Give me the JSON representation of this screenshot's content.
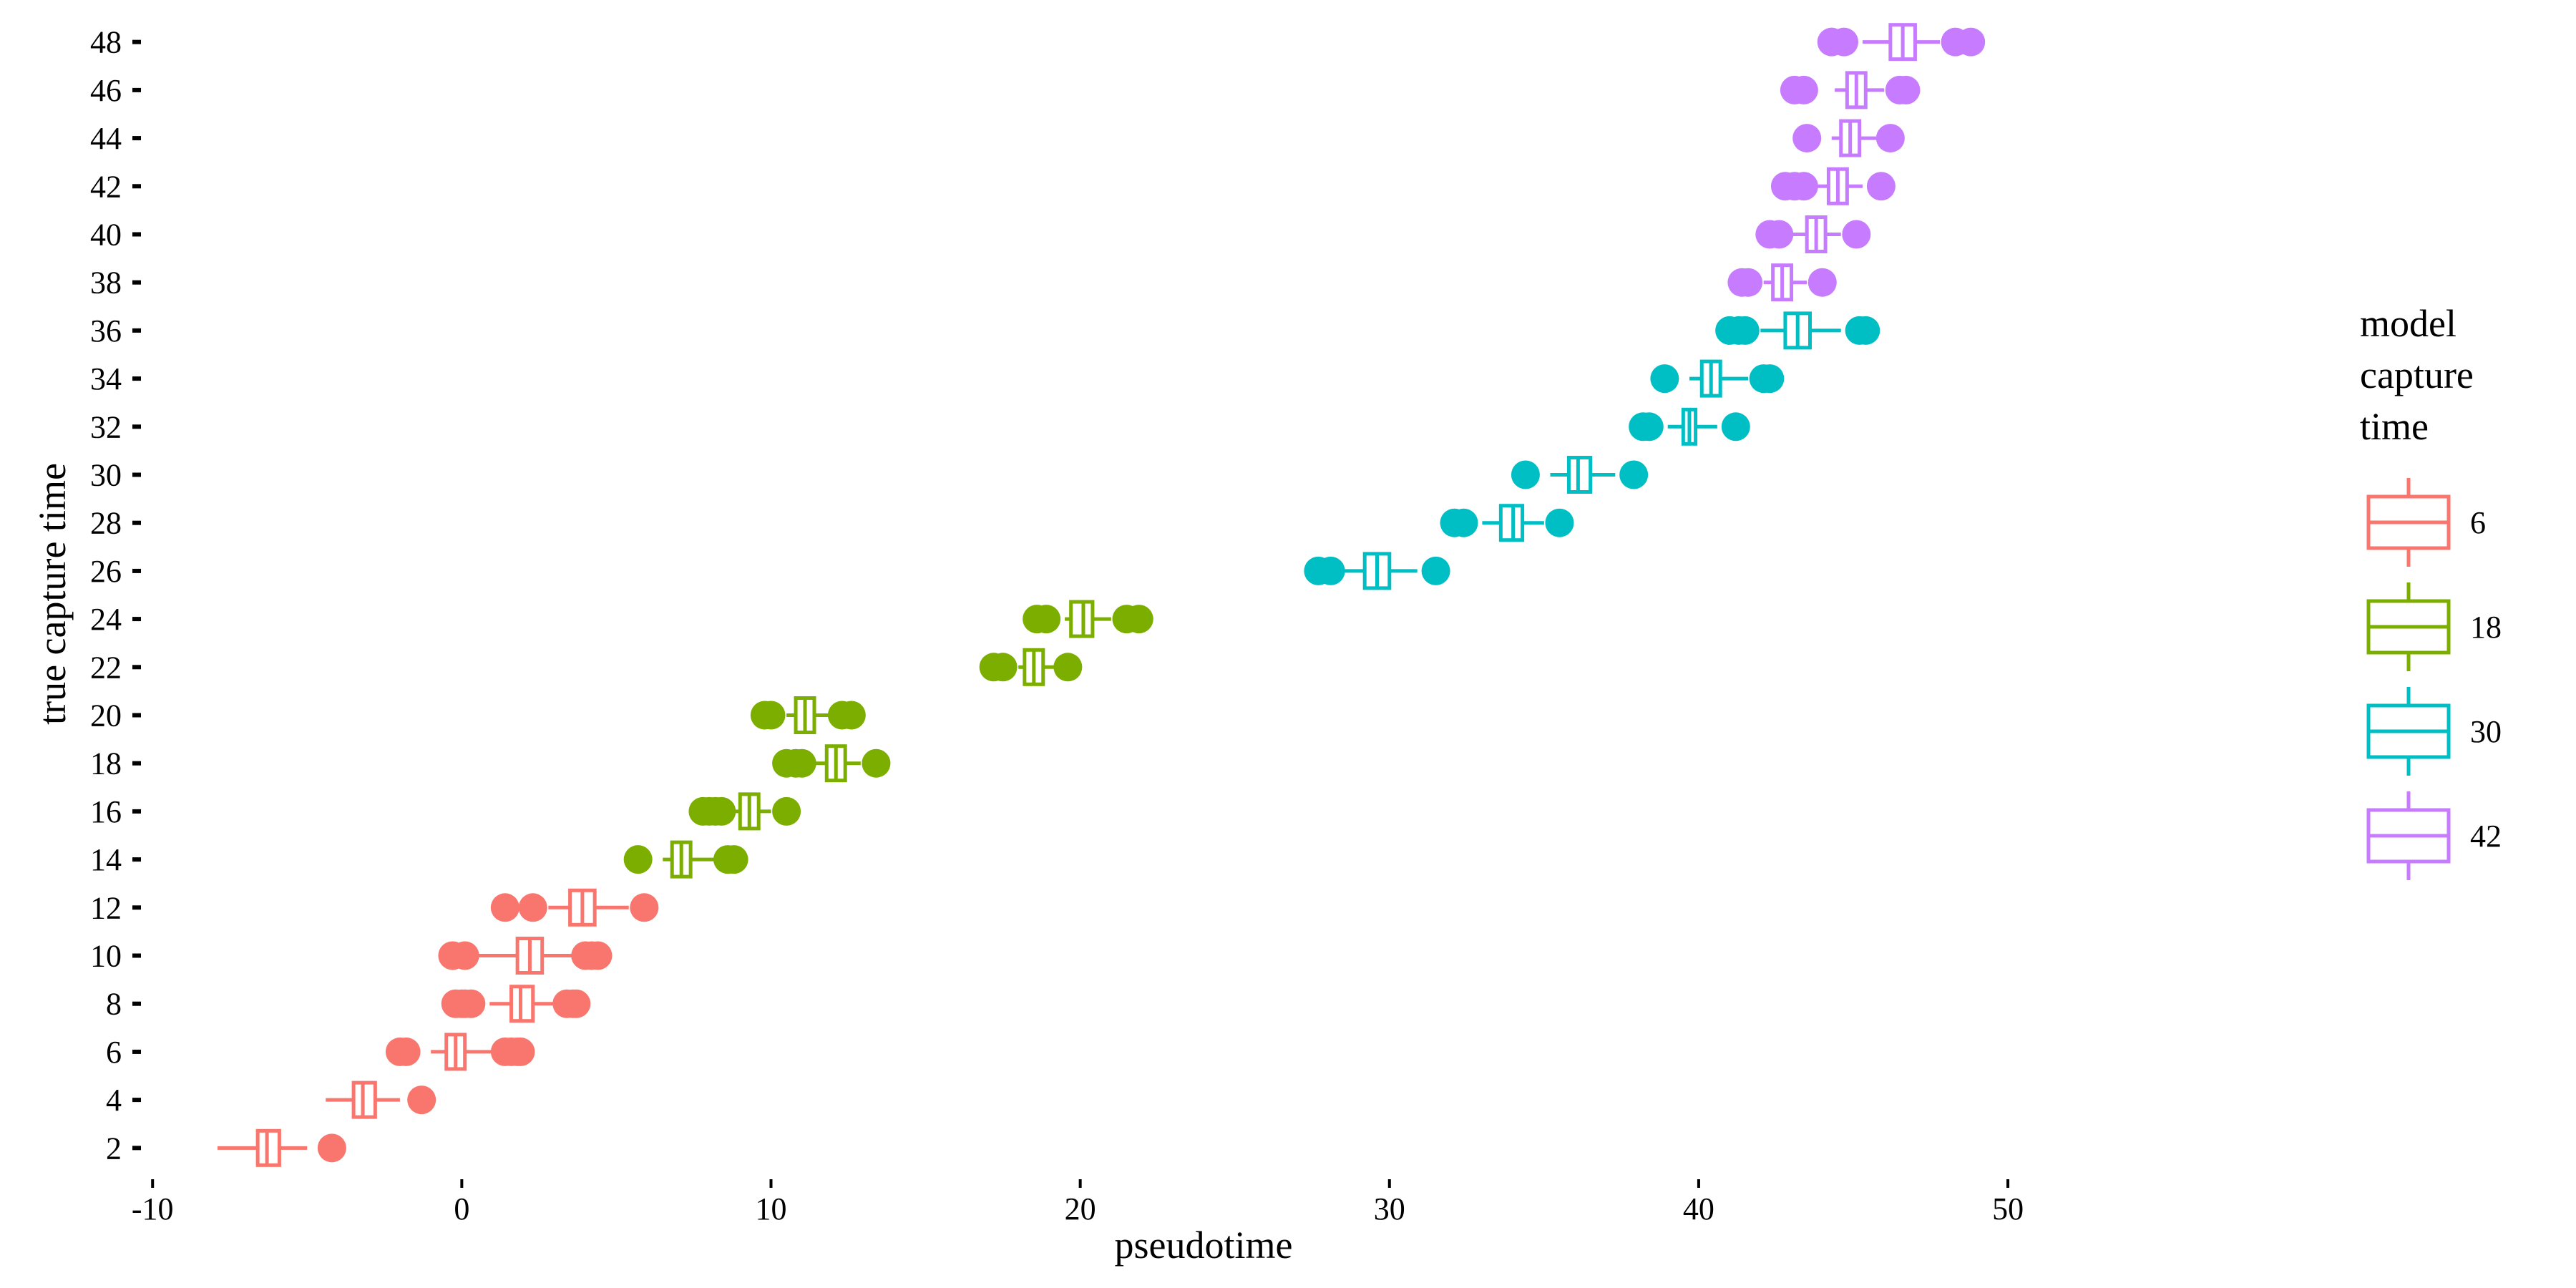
{
  "chart_data": {
    "type": "box",
    "xlabel": "pseudotime",
    "ylabel": "true capture time",
    "xlim": [
      -11,
      59
    ],
    "ylim": [
      0.7,
      49.3
    ],
    "x_ticks": [
      -10,
      0,
      10,
      20,
      30,
      40,
      50
    ],
    "y_ticks": [
      2,
      4,
      6,
      8,
      10,
      12,
      14,
      16,
      18,
      20,
      22,
      24,
      26,
      28,
      30,
      32,
      34,
      36,
      38,
      40,
      42,
      44,
      46,
      48
    ],
    "grid": false,
    "orientation": "horizontal",
    "legend": {
      "title": "model capture time",
      "title_lines": [
        "model",
        "capture",
        "time"
      ],
      "position": "right",
      "entries": [
        "6",
        "18",
        "30",
        "42"
      ]
    },
    "colors": {
      "6": "#F8766D",
      "18": "#7CAE00",
      "30": "#00BFC4",
      "42": "#C77CFF"
    },
    "boxes": [
      {
        "group": "6",
        "y": 2,
        "whisker_low": -7.9,
        "q1": -6.6,
        "median": -6.3,
        "q3": -5.9,
        "whisker_high": -5.0,
        "outliers": [
          -4.2
        ]
      },
      {
        "group": "6",
        "y": 4,
        "whisker_low": -4.4,
        "q1": -3.5,
        "median": -3.2,
        "q3": -2.8,
        "whisker_high": -2.0,
        "outliers": [
          -1.3
        ]
      },
      {
        "group": "6",
        "y": 6,
        "whisker_low": -1.0,
        "q1": -0.5,
        "median": -0.2,
        "q3": 0.1,
        "whisker_high": 1.2,
        "outliers": [
          -2.0,
          -1.8,
          1.4,
          1.6,
          1.8,
          1.9
        ]
      },
      {
        "group": "6",
        "y": 8,
        "whisker_low": 0.9,
        "q1": 1.6,
        "median": 1.9,
        "q3": 2.3,
        "whisker_high": 3.1,
        "outliers": [
          -0.2,
          0.0,
          0.1,
          0.3,
          3.4,
          3.6,
          3.7
        ]
      },
      {
        "group": "6",
        "y": 10,
        "whisker_low": 0.5,
        "q1": 1.8,
        "median": 2.2,
        "q3": 2.6,
        "whisker_high": 3.6,
        "outliers": [
          -0.3,
          0.1,
          4.0,
          4.2,
          4.4
        ]
      },
      {
        "group": "6",
        "y": 12,
        "whisker_low": 2.8,
        "q1": 3.5,
        "median": 3.9,
        "q3": 4.3,
        "whisker_high": 5.4,
        "outliers": [
          1.4,
          2.3,
          5.9
        ]
      },
      {
        "group": "18",
        "y": 14,
        "whisker_low": 6.5,
        "q1": 6.8,
        "median": 7.1,
        "q3": 7.4,
        "whisker_high": 8.2,
        "outliers": [
          5.7,
          8.6,
          8.8
        ]
      },
      {
        "group": "18",
        "y": 16,
        "whisker_low": 8.7,
        "q1": 9.0,
        "median": 9.3,
        "q3": 9.6,
        "whisker_high": 10.0,
        "outliers": [
          7.8,
          8.0,
          8.2,
          8.4,
          10.5
        ]
      },
      {
        "group": "18",
        "y": 18,
        "whisker_low": 11.4,
        "q1": 11.8,
        "median": 12.1,
        "q3": 12.4,
        "whisker_high": 12.9,
        "outliers": [
          10.5,
          10.8,
          11.0,
          13.4
        ]
      },
      {
        "group": "18",
        "y": 20,
        "whisker_low": 10.5,
        "q1": 10.8,
        "median": 11.1,
        "q3": 11.4,
        "whisker_high": 12.0,
        "outliers": [
          9.8,
          10.0,
          12.3,
          12.6
        ]
      },
      {
        "group": "18",
        "y": 22,
        "whisker_low": 18.0,
        "q1": 18.2,
        "median": 18.5,
        "q3": 18.8,
        "whisker_high": 19.3,
        "outliers": [
          17.2,
          17.5,
          19.6
        ]
      },
      {
        "group": "18",
        "y": 24,
        "whisker_low": 19.5,
        "q1": 19.7,
        "median": 20.1,
        "q3": 20.4,
        "whisker_high": 21.0,
        "outliers": [
          18.6,
          18.9,
          21.5,
          21.9
        ]
      },
      {
        "group": "30",
        "y": 26,
        "whisker_low": 28.4,
        "q1": 29.2,
        "median": 29.6,
        "q3": 30.0,
        "whisker_high": 30.9,
        "outliers": [
          27.7,
          28.1,
          31.5
        ]
      },
      {
        "group": "30",
        "y": 28,
        "whisker_low": 33.0,
        "q1": 33.6,
        "median": 34.0,
        "q3": 34.3,
        "whisker_high": 35.0,
        "outliers": [
          32.1,
          32.4,
          35.5
        ]
      },
      {
        "group": "30",
        "y": 30,
        "whisker_low": 35.2,
        "q1": 35.8,
        "median": 36.1,
        "q3": 36.5,
        "whisker_high": 37.3,
        "outliers": [
          34.4,
          37.9
        ]
      },
      {
        "group": "30",
        "y": 32,
        "whisker_low": 39.0,
        "q1": 39.5,
        "median": 39.7,
        "q3": 39.9,
        "whisker_high": 40.6,
        "outliers": [
          38.2,
          38.4,
          41.2
        ]
      },
      {
        "group": "30",
        "y": 34,
        "whisker_low": 39.7,
        "q1": 40.1,
        "median": 40.4,
        "q3": 40.7,
        "whisker_high": 41.6,
        "outliers": [
          38.9,
          42.1,
          42.3
        ]
      },
      {
        "group": "30",
        "y": 36,
        "whisker_low": 42.0,
        "q1": 42.8,
        "median": 43.2,
        "q3": 43.6,
        "whisker_high": 44.6,
        "outliers": [
          41.0,
          41.3,
          41.5,
          45.2,
          45.4
        ]
      },
      {
        "group": "42",
        "y": 38,
        "whisker_low": 42.1,
        "q1": 42.4,
        "median": 42.7,
        "q3": 43.0,
        "whisker_high": 43.5,
        "outliers": [
          41.4,
          41.6,
          44.0
        ]
      },
      {
        "group": "42",
        "y": 40,
        "whisker_low": 43.0,
        "q1": 43.5,
        "median": 43.8,
        "q3": 44.1,
        "whisker_high": 44.6,
        "outliers": [
          42.3,
          42.6,
          45.1
        ]
      },
      {
        "group": "42",
        "y": 42,
        "whisker_low": 43.8,
        "q1": 44.2,
        "median": 44.5,
        "q3": 44.8,
        "whisker_high": 45.3,
        "outliers": [
          42.8,
          43.1,
          43.4,
          45.9
        ]
      },
      {
        "group": "42",
        "y": 44,
        "whisker_low": 44.3,
        "q1": 44.6,
        "median": 44.9,
        "q3": 45.2,
        "whisker_high": 45.9,
        "outliers": [
          43.5,
          46.2
        ]
      },
      {
        "group": "42",
        "y": 46,
        "whisker_low": 44.4,
        "q1": 44.8,
        "median": 45.1,
        "q3": 45.4,
        "whisker_high": 46.0,
        "outliers": [
          43.1,
          43.4,
          46.5,
          46.7
        ]
      },
      {
        "group": "42",
        "y": 48,
        "whisker_low": 45.3,
        "q1": 46.2,
        "median": 46.6,
        "q3": 47.0,
        "whisker_high": 47.8,
        "outliers": [
          44.3,
          44.7,
          48.3,
          48.8
        ]
      }
    ]
  }
}
